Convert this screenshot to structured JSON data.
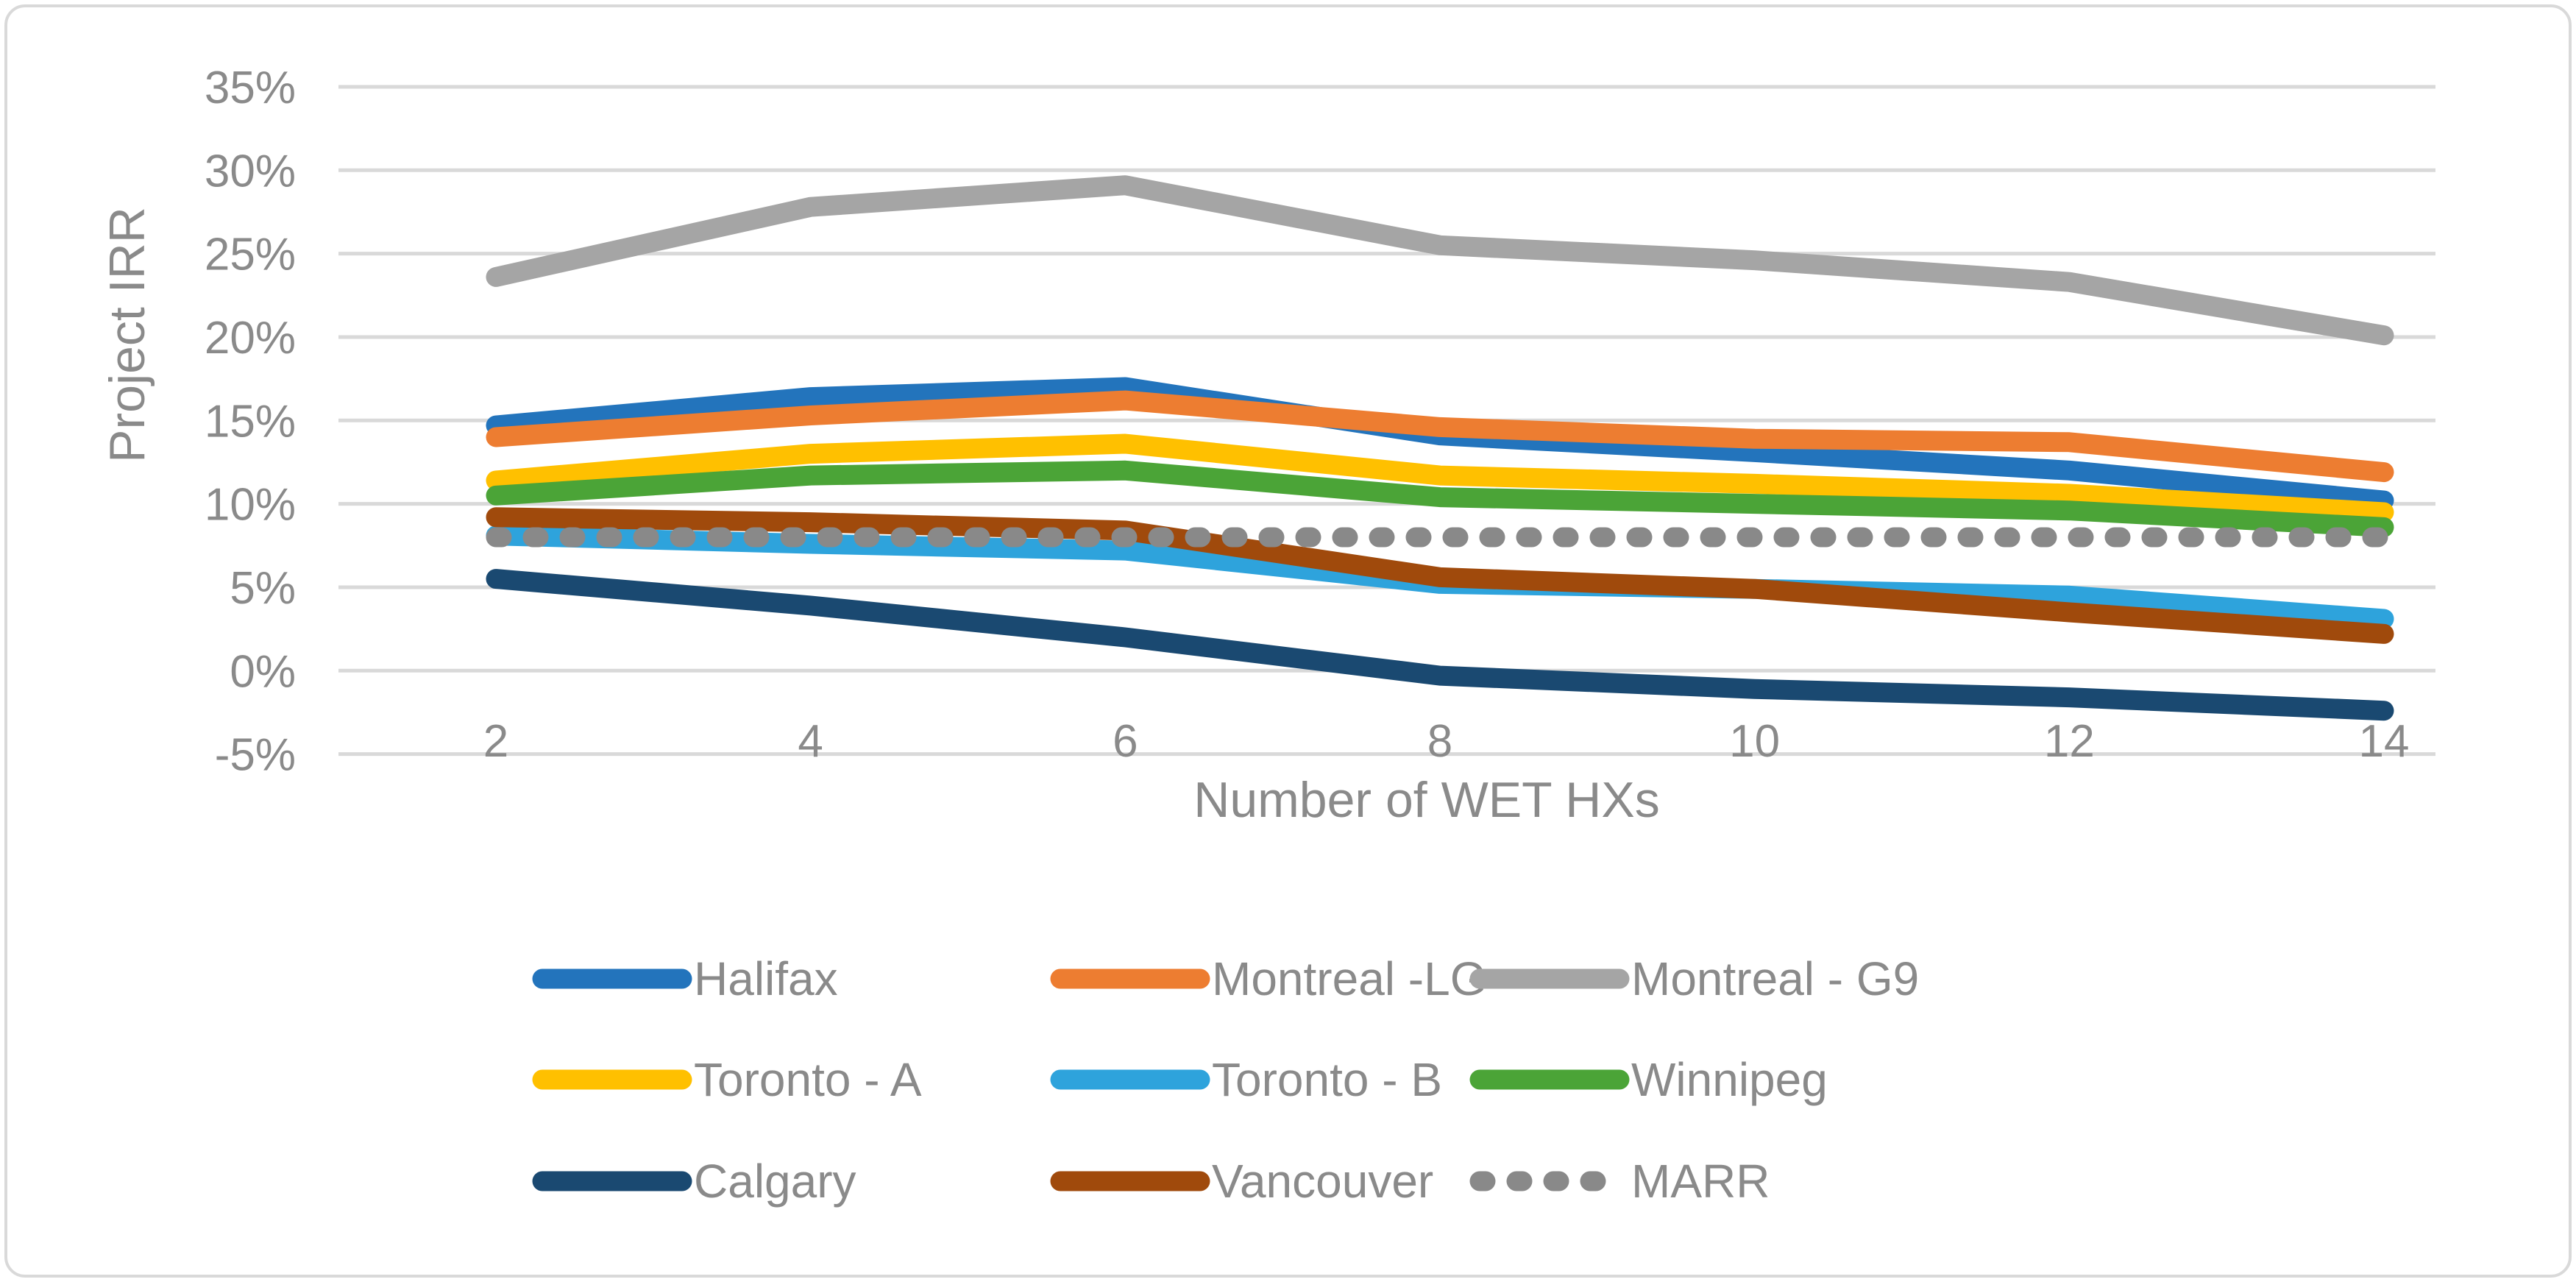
{
  "chart_data": {
    "type": "line",
    "title": "",
    "xlabel": "Number of WET HXs",
    "ylabel": "Project IRR",
    "x": [
      2,
      4,
      6,
      8,
      10,
      12,
      14
    ],
    "xlim": [
      2,
      14
    ],
    "ylim": [
      -5,
      35
    ],
    "y_tick_step": 5,
    "y_tick_labels": [
      "35%",
      "30%",
      "25%",
      "20%",
      "15%",
      "10%",
      "5%",
      "0%",
      "-5%"
    ],
    "x_tick_labels": [
      "2",
      "4",
      "6",
      "8",
      "10",
      "12",
      "14"
    ],
    "grid": true,
    "legend_position": "bottom",
    "legend_rows": 3,
    "legend_cols": 3,
    "series": [
      {
        "name": "Halifax",
        "color": "#2374BC",
        "dashed": false,
        "values": [
          14.7,
          16.4,
          17.0,
          14.1,
          13.1,
          12.0,
          10.2
        ]
      },
      {
        "name": "Montreal -LG",
        "color": "#ED7D31",
        "dashed": false,
        "values": [
          14.0,
          15.3,
          16.2,
          14.6,
          13.9,
          13.7,
          11.9
        ]
      },
      {
        "name": "Montreal - G9",
        "color": "#A5A5A5",
        "dashed": false,
        "values": [
          23.6,
          27.8,
          29.1,
          25.5,
          24.6,
          23.3,
          20.1
        ]
      },
      {
        "name": "Toronto - A",
        "color": "#FFC000",
        "dashed": false,
        "values": [
          11.4,
          13.0,
          13.6,
          11.7,
          11.2,
          10.6,
          9.5
        ]
      },
      {
        "name": "Toronto - B",
        "color": "#2EA3DC",
        "dashed": false,
        "values": [
          8.1,
          7.6,
          7.2,
          5.2,
          4.9,
          4.5,
          3.1
        ]
      },
      {
        "name": "Winnipeg",
        "color": "#4BA437",
        "dashed": false,
        "values": [
          10.5,
          11.7,
          12.0,
          10.4,
          10.0,
          9.6,
          8.6
        ]
      },
      {
        "name": "Calgary",
        "color": "#1A4971",
        "dashed": false,
        "values": [
          5.5,
          3.9,
          2.0,
          -0.3,
          -1.1,
          -1.6,
          -2.4
        ]
      },
      {
        "name": "Vancouver",
        "color": "#A04A0C",
        "dashed": false,
        "values": [
          9.2,
          8.9,
          8.4,
          5.6,
          4.9,
          3.5,
          2.2
        ]
      },
      {
        "name": "MARR",
        "color": "#898989",
        "dashed": true,
        "values": [
          8,
          8,
          8,
          8,
          8,
          8,
          8
        ]
      }
    ],
    "styles": {
      "grid_color": "#D9D9D9",
      "border_color": "#D9D9D9",
      "text_color": "#8A8A8A",
      "background": "#FFFFFF"
    }
  }
}
